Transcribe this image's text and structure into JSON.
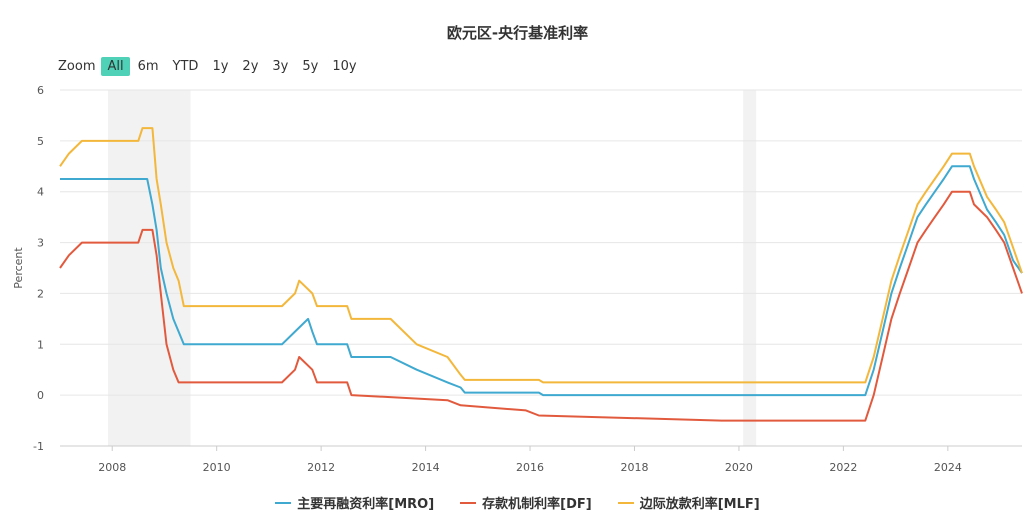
{
  "chart_data": {
    "type": "line",
    "title": "欧元区-央行基准利率",
    "ylabel": "Percent",
    "xlabel": "",
    "xlim": [
      2007.0,
      2025.42
    ],
    "ylim": [
      -1,
      6
    ],
    "yticks": [
      -1,
      0,
      1,
      2,
      3,
      4,
      5,
      6
    ],
    "xticks": [
      2008,
      2010,
      2012,
      2014,
      2016,
      2018,
      2020,
      2022,
      2024
    ],
    "grid": true,
    "legend": "bottom-center",
    "recession_bands": [
      [
        2007.92,
        2009.5
      ],
      [
        2020.08,
        2020.33
      ]
    ],
    "series": [
      {
        "name": "主要再融资利率[MRO]",
        "color": "#3fa9d0",
        "points": [
          [
            2007.0,
            4.25
          ],
          [
            2008.67,
            4.25
          ],
          [
            2008.77,
            3.75
          ],
          [
            2008.85,
            3.25
          ],
          [
            2008.93,
            2.5
          ],
          [
            2009.04,
            2.0
          ],
          [
            2009.17,
            1.5
          ],
          [
            2009.27,
            1.25
          ],
          [
            2009.37,
            1.0
          ],
          [
            2011.25,
            1.0
          ],
          [
            2011.5,
            1.25
          ],
          [
            2011.75,
            1.5
          ],
          [
            2011.83,
            1.25
          ],
          [
            2011.92,
            1.0
          ],
          [
            2012.5,
            1.0
          ],
          [
            2012.58,
            0.75
          ],
          [
            2013.33,
            0.75
          ],
          [
            2013.83,
            0.5
          ],
          [
            2014.42,
            0.25
          ],
          [
            2014.67,
            0.15
          ],
          [
            2014.75,
            0.05
          ],
          [
            2016.17,
            0.05
          ],
          [
            2016.25,
            0.0
          ],
          [
            2022.42,
            0.0
          ],
          [
            2022.58,
            0.5
          ],
          [
            2022.75,
            1.25
          ],
          [
            2022.92,
            2.0
          ],
          [
            2023.08,
            2.5
          ],
          [
            2023.25,
            3.0
          ],
          [
            2023.42,
            3.5
          ],
          [
            2023.58,
            3.75
          ],
          [
            2023.75,
            4.0
          ],
          [
            2023.92,
            4.25
          ],
          [
            2024.08,
            4.5
          ],
          [
            2024.42,
            4.5
          ],
          [
            2024.5,
            4.25
          ],
          [
            2024.75,
            3.65
          ],
          [
            2024.92,
            3.4
          ],
          [
            2025.08,
            3.15
          ],
          [
            2025.25,
            2.65
          ],
          [
            2025.42,
            2.4
          ]
        ]
      },
      {
        "name": "存款机制利率[DF]",
        "color": "#e25a3e",
        "points": [
          [
            2007.0,
            2.5
          ],
          [
            2007.17,
            2.75
          ],
          [
            2007.42,
            3.0
          ],
          [
            2008.5,
            3.0
          ],
          [
            2008.58,
            3.25
          ],
          [
            2008.77,
            3.25
          ],
          [
            2008.85,
            2.75
          ],
          [
            2008.93,
            2.0
          ],
          [
            2009.04,
            1.0
          ],
          [
            2009.17,
            0.5
          ],
          [
            2009.27,
            0.25
          ],
          [
            2011.25,
            0.25
          ],
          [
            2011.5,
            0.5
          ],
          [
            2011.58,
            0.75
          ],
          [
            2011.83,
            0.5
          ],
          [
            2011.92,
            0.25
          ],
          [
            2012.5,
            0.25
          ],
          [
            2012.58,
            0.0
          ],
          [
            2014.42,
            -0.1
          ],
          [
            2014.67,
            -0.2
          ],
          [
            2015.92,
            -0.3
          ],
          [
            2016.17,
            -0.4
          ],
          [
            2019.67,
            -0.5
          ],
          [
            2022.42,
            -0.5
          ],
          [
            2022.58,
            0.0
          ],
          [
            2022.75,
            0.75
          ],
          [
            2022.92,
            1.5
          ],
          [
            2023.08,
            2.0
          ],
          [
            2023.25,
            2.5
          ],
          [
            2023.42,
            3.0
          ],
          [
            2023.58,
            3.25
          ],
          [
            2023.75,
            3.5
          ],
          [
            2023.92,
            3.75
          ],
          [
            2024.08,
            4.0
          ],
          [
            2024.42,
            4.0
          ],
          [
            2024.5,
            3.75
          ],
          [
            2024.75,
            3.5
          ],
          [
            2024.92,
            3.25
          ],
          [
            2025.08,
            3.0
          ],
          [
            2025.25,
            2.5
          ],
          [
            2025.42,
            2.0
          ]
        ]
      },
      {
        "name": "边际放款利率[MLF]",
        "color": "#f3b73b",
        "points": [
          [
            2007.0,
            4.5
          ],
          [
            2007.17,
            4.75
          ],
          [
            2007.42,
            5.0
          ],
          [
            2008.5,
            5.0
          ],
          [
            2008.58,
            5.25
          ],
          [
            2008.77,
            5.25
          ],
          [
            2008.85,
            4.25
          ],
          [
            2008.93,
            3.75
          ],
          [
            2009.04,
            3.0
          ],
          [
            2009.17,
            2.5
          ],
          [
            2009.27,
            2.25
          ],
          [
            2009.37,
            1.75
          ],
          [
            2011.25,
            1.75
          ],
          [
            2011.5,
            2.0
          ],
          [
            2011.58,
            2.25
          ],
          [
            2011.83,
            2.0
          ],
          [
            2011.92,
            1.75
          ],
          [
            2012.5,
            1.75
          ],
          [
            2012.58,
            1.5
          ],
          [
            2013.33,
            1.5
          ],
          [
            2013.83,
            1.0
          ],
          [
            2014.42,
            0.75
          ],
          [
            2014.67,
            0.4
          ],
          [
            2014.75,
            0.3
          ],
          [
            2016.17,
            0.3
          ],
          [
            2016.25,
            0.25
          ],
          [
            2022.42,
            0.25
          ],
          [
            2022.58,
            0.75
          ],
          [
            2022.75,
            1.5
          ],
          [
            2022.92,
            2.25
          ],
          [
            2023.08,
            2.75
          ],
          [
            2023.25,
            3.25
          ],
          [
            2023.42,
            3.75
          ],
          [
            2023.58,
            4.0
          ],
          [
            2023.75,
            4.25
          ],
          [
            2023.92,
            4.5
          ],
          [
            2024.08,
            4.75
          ],
          [
            2024.42,
            4.75
          ],
          [
            2024.5,
            4.5
          ],
          [
            2024.75,
            3.9
          ],
          [
            2024.92,
            3.65
          ],
          [
            2025.08,
            3.4
          ],
          [
            2025.25,
            2.9
          ],
          [
            2025.42,
            2.4
          ]
        ]
      }
    ]
  },
  "zoom": {
    "label": "Zoom",
    "buttons": [
      "All",
      "6m",
      "YTD",
      "1y",
      "2y",
      "3y",
      "5y",
      "10y"
    ],
    "active": "All"
  }
}
